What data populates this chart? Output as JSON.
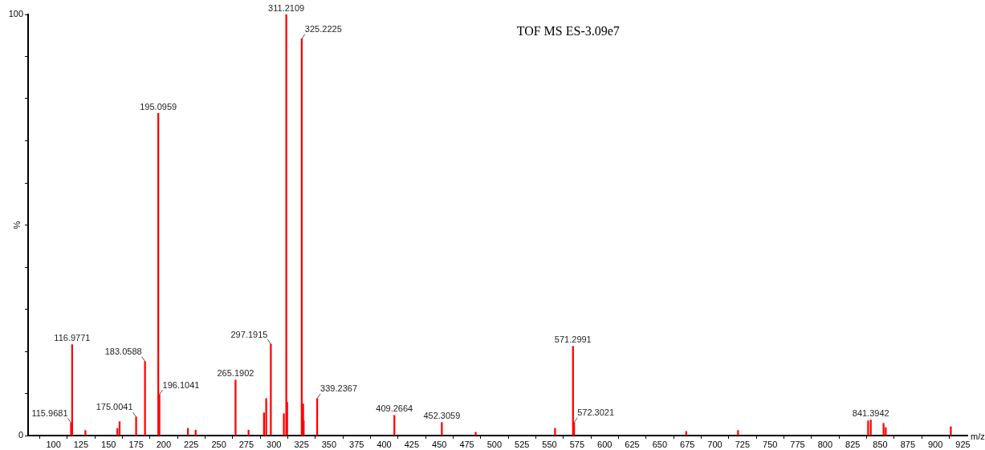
{
  "chart_data": {
    "type": "bar",
    "xlabel": "m/z",
    "ylabel": "%",
    "x": [
      115.9681,
      116.9771,
      129,
      158,
      160,
      175.0041,
      183.0588,
      195.0959,
      196.1041,
      222,
      229,
      265.1902,
      277,
      291,
      293,
      297.1915,
      309,
      311.2109,
      312,
      325.2225,
      326.5,
      327,
      339.2367,
      409.2664,
      452.3059,
      483,
      555,
      571.2991,
      572.3021,
      674,
      721,
      839,
      841.3942,
      853,
      855,
      914
    ],
    "series": [
      {
        "color": "#ff0000",
        "values": [
          3.0,
          21.6,
          1.2,
          1.7,
          3.3,
          4.4,
          17.6,
          76.5,
          9.7,
          1.7,
          1.3,
          13.2,
          1.3,
          5.4,
          8.8,
          21.7,
          5.2,
          100,
          7.9,
          94.2,
          7.5,
          3.5,
          8.8,
          4.8,
          3.1,
          0.8,
          1.7,
          21.2,
          3.1,
          1.0,
          1.2,
          3.5,
          3.7,
          2.9,
          1.9,
          2.1
        ]
      }
    ],
    "xlim": [
      77,
      929
    ],
    "xticks": [
      100,
      125,
      150,
      175,
      200,
      225,
      250,
      275,
      300,
      325,
      350,
      375,
      400,
      425,
      450,
      475,
      500,
      525,
      550,
      575,
      600,
      625,
      650,
      675,
      700,
      725,
      750,
      775,
      800,
      825,
      850,
      875,
      900,
      925
    ],
    "ylim": [
      0,
      100
    ],
    "yticks": [
      0,
      {
        "value": 10,
        "label": null
      },
      {
        "value": 20,
        "label": null
      },
      {
        "value": 30,
        "label": null
      },
      {
        "value": 40,
        "label": null
      },
      {
        "value": 50,
        "label": null
      },
      {
        "value": 60,
        "label": null
      },
      {
        "value": 70,
        "label": null
      },
      {
        "value": 80,
        "label": null
      },
      {
        "value": 90,
        "label": null
      },
      100
    ],
    "grid": false,
    "legend": false,
    "annotations": [
      "TOF MS ES-3.09e7",
      {
        "text": "115.9681",
        "x": 115.9681,
        "y": 3.0
      },
      {
        "text": "116.9771",
        "x": 116.9771,
        "y": 21.6
      },
      {
        "text": "175.0041",
        "x": 175.0041,
        "y": 4.4
      },
      {
        "text": "183.0588",
        "x": 183.0588,
        "y": 17.6
      },
      {
        "text": "195.0959",
        "x": 195.0959,
        "y": 76.5
      },
      {
        "text": "196.1041",
        "x": 196.1041,
        "y": 9.7
      },
      {
        "text": "265.1902",
        "x": 265.1902,
        "y": 13.2
      },
      {
        "text": "297.1915",
        "x": 297.1915,
        "y": 21.7
      },
      {
        "text": "311.2109",
        "x": 311.2109,
        "y": 100
      },
      {
        "text": "325.2225",
        "x": 325.2225,
        "y": 94.2
      },
      {
        "text": "339.2367",
        "x": 339.2367,
        "y": 8.8
      },
      {
        "text": "409.2664",
        "x": 409.2664,
        "y": 4.8
      },
      {
        "text": "452.3059",
        "x": 452.3059,
        "y": 3.1
      },
      {
        "text": "571.2991",
        "x": 571.2991,
        "y": 21.2
      },
      {
        "text": "572.3021",
        "x": 572.3021,
        "y": 3.1
      },
      {
        "text": "841.3942",
        "x": 841.3942,
        "y": 3.7
      }
    ]
  }
}
